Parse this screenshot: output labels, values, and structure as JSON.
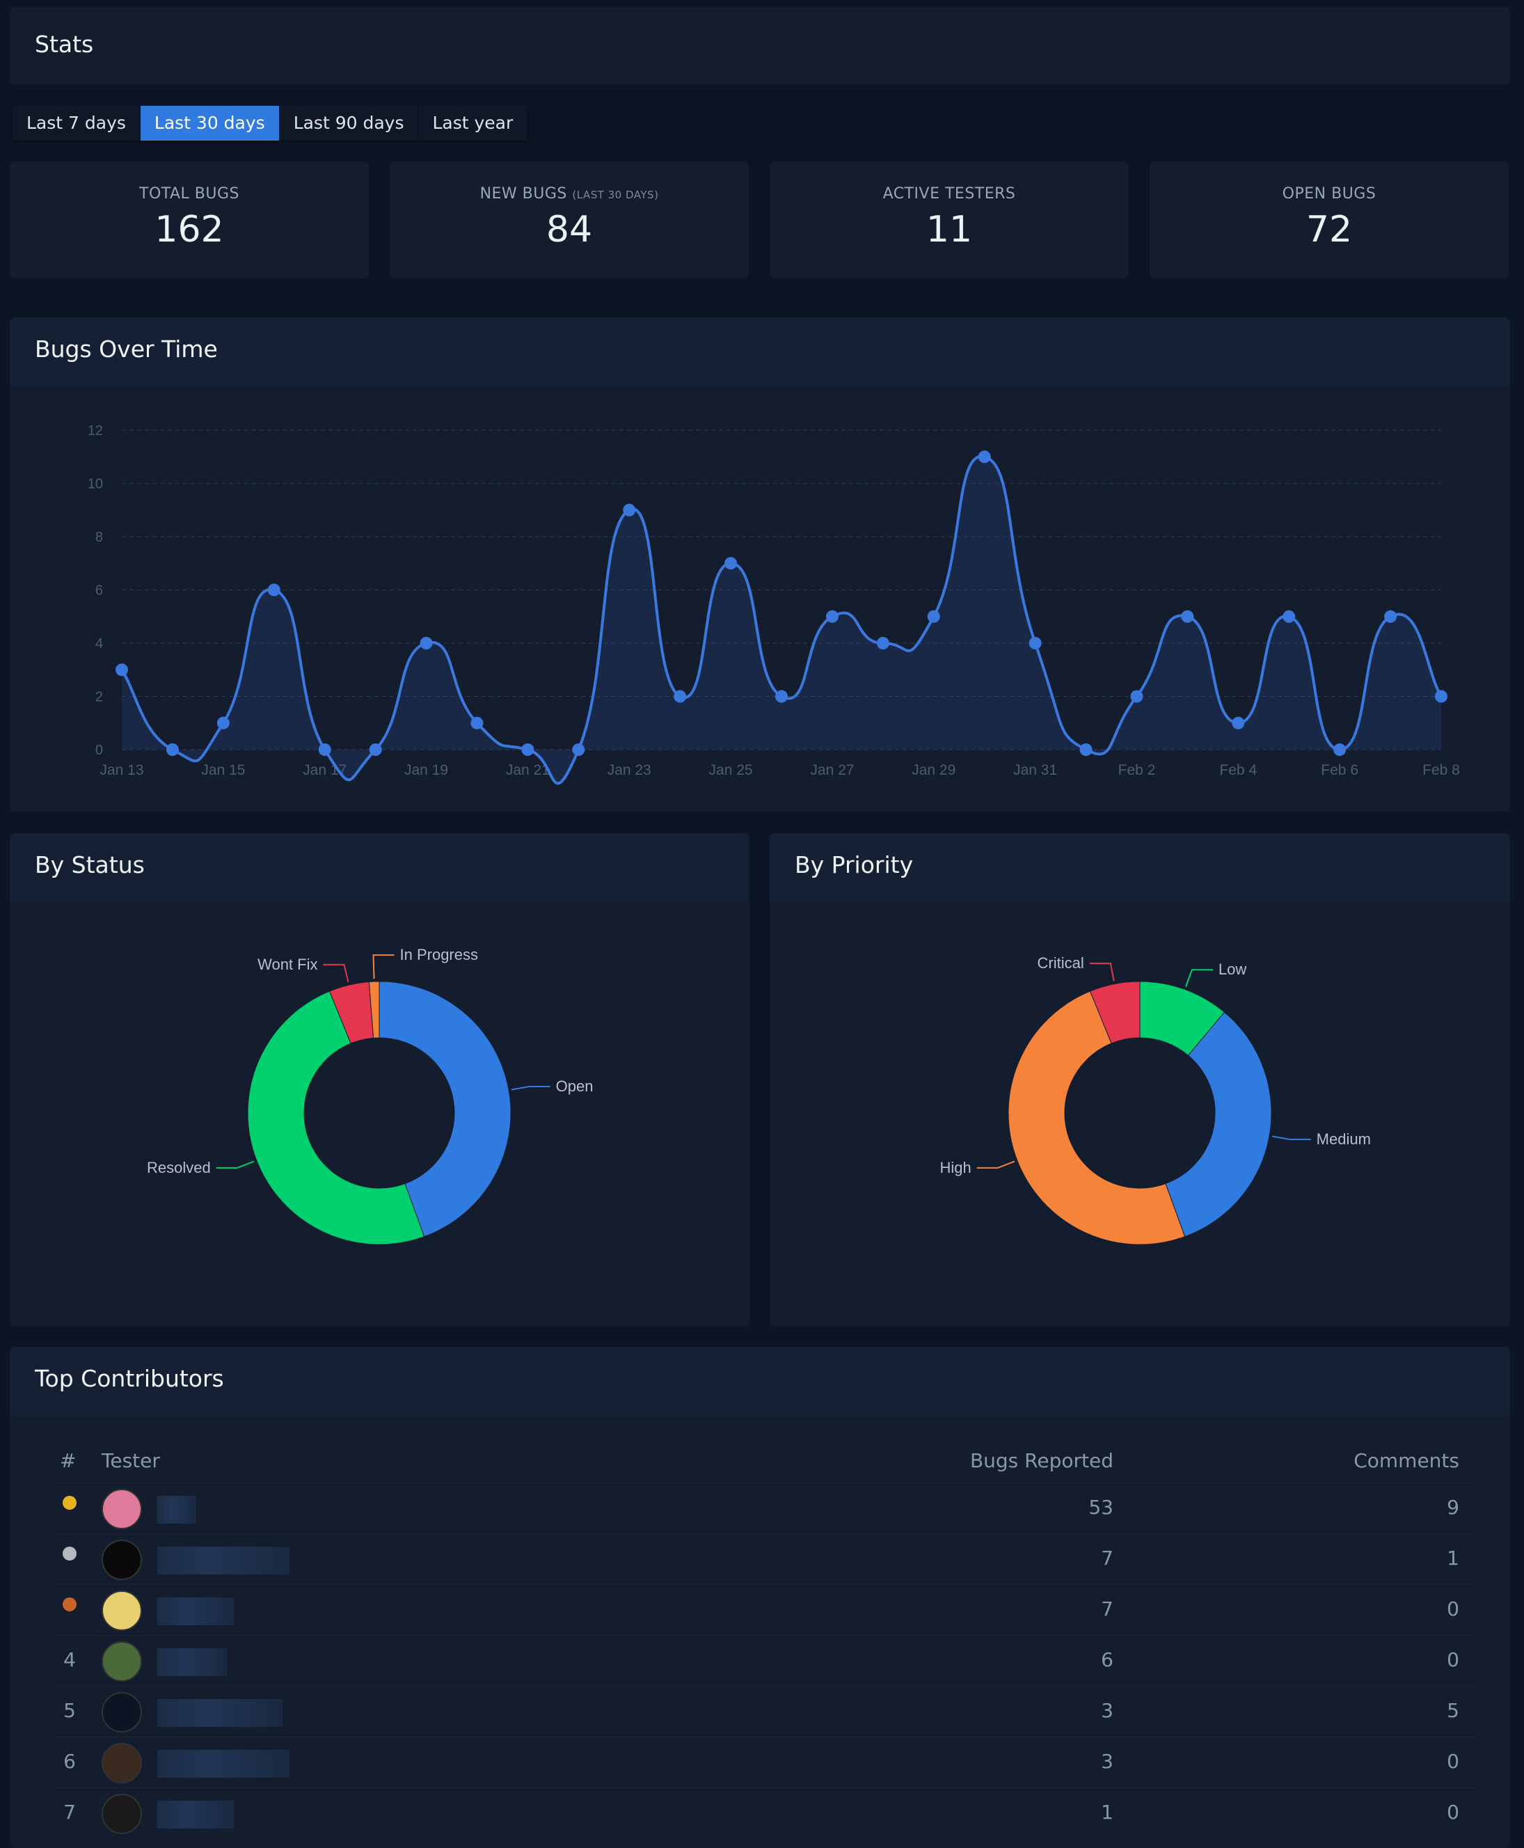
{
  "stats": {
    "title": "Stats",
    "tabs": [
      {
        "label": "Last 7 days",
        "active": false
      },
      {
        "label": "Last 30 days",
        "active": true
      },
      {
        "label": "Last 90 days",
        "active": false
      },
      {
        "label": "Last year",
        "active": false
      }
    ],
    "cards": [
      {
        "label": "TOTAL BUGS",
        "sub": "",
        "value": "162"
      },
      {
        "label": "NEW BUGS",
        "sub": "(LAST 30 DAYS)",
        "value": "84"
      },
      {
        "label": "ACTIVE TESTERS",
        "sub": "",
        "value": "11"
      },
      {
        "label": "OPEN BUGS",
        "sub": "",
        "value": "72"
      }
    ]
  },
  "chart_data": [
    {
      "type": "area",
      "title": "Bugs Over Time",
      "ylim": [
        0,
        12
      ],
      "yticks": [
        "0",
        "2",
        "4",
        "6",
        "8",
        "10",
        "12"
      ],
      "grid": true,
      "color": "#3a78dd",
      "x": [
        "Jan 13",
        "Jan 14",
        "Jan 15",
        "Jan 16",
        "Jan 17",
        "Jan 18",
        "Jan 19",
        "Jan 20",
        "Jan 21",
        "Jan 22",
        "Jan 23",
        "Jan 24",
        "Jan 25",
        "Jan 26",
        "Jan 27",
        "Jan 28",
        "Jan 29",
        "Jan 30",
        "Jan 31",
        "Feb 1",
        "Feb 2",
        "Feb 3",
        "Feb 4",
        "Feb 5",
        "Feb 6",
        "Feb 7",
        "Feb 8"
      ],
      "xticks": [
        "Jan 13",
        "Jan 15",
        "Jan 17",
        "Jan 19",
        "Jan 21",
        "Jan 23",
        "Jan 25",
        "Jan 27",
        "Jan 29",
        "Jan 31",
        "Feb 2",
        "Feb 4",
        "Feb 6",
        "Feb 8"
      ],
      "values": [
        3,
        0,
        1,
        6,
        0,
        0,
        4,
        1,
        0,
        0,
        9,
        2,
        7,
        2,
        5,
        4,
        5,
        11,
        4,
        0,
        2,
        5,
        1,
        5,
        0,
        5,
        2
      ]
    },
    {
      "type": "pie",
      "title": "By Status",
      "slices": [
        {
          "label": "Open",
          "value": 72,
          "color": "#2f7be0"
        },
        {
          "label": "Resolved",
          "value": 80,
          "color": "#00d06e"
        },
        {
          "label": "Wont Fix",
          "value": 8,
          "color": "#e5354f"
        },
        {
          "label": "In Progress",
          "value": 2,
          "color": "#f5843a"
        }
      ]
    },
    {
      "type": "pie",
      "title": "By Priority",
      "slices": [
        {
          "label": "Low",
          "value": 18,
          "color": "#00d06e"
        },
        {
          "label": "Medium",
          "value": 54,
          "color": "#2f7be0"
        },
        {
          "label": "High",
          "value": 80,
          "color": "#f5843a"
        },
        {
          "label": "Critical",
          "value": 10,
          "color": "#e5354f"
        }
      ]
    }
  ],
  "contributors": {
    "title": "Top Contributors",
    "headers": {
      "rank": "#",
      "tester": "Tester",
      "bugs": "Bugs Reported",
      "comments": "Comments"
    },
    "rows": [
      {
        "rank": "1",
        "medal": "#e8b323",
        "bugs": "53",
        "comments": "9"
      },
      {
        "rank": "2",
        "medal": "#b5b9bf",
        "bugs": "7",
        "comments": "1"
      },
      {
        "rank": "3",
        "medal": "#c8642a",
        "bugs": "7",
        "comments": "0"
      },
      {
        "rank": "4",
        "bugs": "6",
        "comments": "0"
      },
      {
        "rank": "5",
        "bugs": "3",
        "comments": "5"
      },
      {
        "rank": "6",
        "bugs": "3",
        "comments": "0"
      },
      {
        "rank": "7",
        "bugs": "1",
        "comments": "0"
      }
    ]
  }
}
